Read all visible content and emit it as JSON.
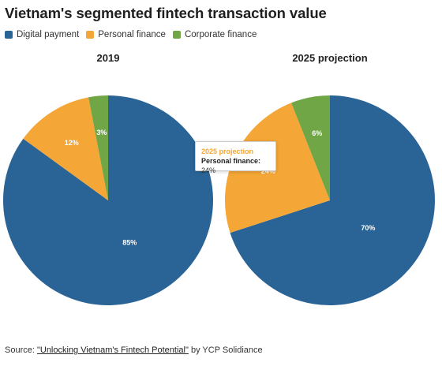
{
  "title": "Vietnam's segmented fintech transaction value",
  "legend": [
    {
      "label": "Digital payment",
      "color": "#2a6496"
    },
    {
      "label": "Personal finance",
      "color": "#f4a636"
    },
    {
      "label": "Corporate finance",
      "color": "#70a646"
    }
  ],
  "tooltip": {
    "title": "2025 projection",
    "label": "Personal finance:",
    "value": "24%"
  },
  "source": {
    "prefix": "Source: ",
    "link_text": "\"Unlocking Vietnam's Fintech Potential\"",
    "suffix": " by YCP Solidiance"
  },
  "chart_data": [
    {
      "type": "pie",
      "title": "2019",
      "categories": [
        "Digital payment",
        "Personal finance",
        "Corporate finance"
      ],
      "values": [
        85,
        12,
        3
      ],
      "labels": [
        "85%",
        "12%",
        "3%"
      ],
      "colors": [
        "#2a6496",
        "#f4a636",
        "#70a646"
      ]
    },
    {
      "type": "pie",
      "title": "2025 projection",
      "categories": [
        "Digital payment",
        "Personal finance",
        "Corporate finance"
      ],
      "values": [
        70,
        24,
        6
      ],
      "labels": [
        "70%",
        "24%",
        "6%"
      ],
      "colors": [
        "#2a6496",
        "#f4a636",
        "#70a646"
      ]
    }
  ]
}
